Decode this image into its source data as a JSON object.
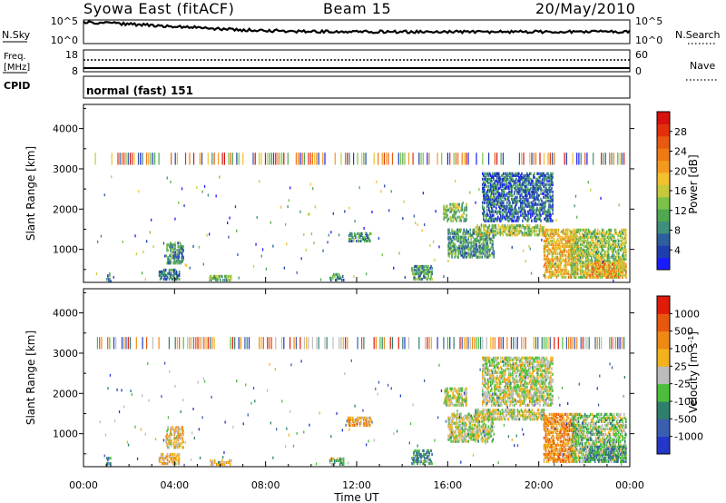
{
  "header": {
    "station": "Syowa East (fitACF)",
    "beam": "Beam 15",
    "date": "20/May/2010"
  },
  "top_panels": {
    "nsky_label": "N.Sky",
    "nsky_ticks": [
      "10^5",
      "10^0"
    ],
    "nsearch_label": "N.Search",
    "freq_label_1": "Freq.",
    "freq_label_2": "[MHz]",
    "freq_ticks": [
      "18",
      "8"
    ],
    "nave_label": "Nave",
    "nave_ticks": [
      "60",
      "0"
    ],
    "cpid_label": "CPID",
    "cpid_text": "normal (fast) 151"
  },
  "chart_data": [
    {
      "type": "heatmap",
      "title": "",
      "xlabel": "",
      "ylabel": "Slant Range [km]",
      "x_range_hours": [
        0,
        24
      ],
      "ylim": [
        180,
        4600
      ],
      "yticks": [
        1000,
        2000,
        3000,
        4000
      ],
      "colorbar": {
        "label": "Power [dB]",
        "ticks": [
          4,
          8,
          12,
          16,
          20,
          24,
          28
        ],
        "colors": [
          "#1a1aff",
          "#1f3fb0",
          "#2e5e9e",
          "#3f8f7a",
          "#4fa84f",
          "#7cc24a",
          "#c8c83c",
          "#f2c12e",
          "#f39a1e",
          "#ee7a14",
          "#e85a10",
          "#e3300c",
          "#d81010"
        ]
      },
      "echo_regions": [
        {
          "t": [
            1.0,
            1.2
          ],
          "r": [
            200,
            400
          ],
          "level": 0.25
        },
        {
          "t": [
            3.3,
            4.2
          ],
          "r": [
            250,
            500
          ],
          "level": 0.25
        },
        {
          "t": [
            3.6,
            4.4
          ],
          "r": [
            650,
            1150
          ],
          "level": 0.3
        },
        {
          "t": [
            5.5,
            6.5
          ],
          "r": [
            230,
            350
          ],
          "level": 0.4
        },
        {
          "t": [
            10.8,
            11.4
          ],
          "r": [
            230,
            380
          ],
          "level": 0.3
        },
        {
          "t": [
            11.6,
            12.6
          ],
          "r": [
            1200,
            1400
          ],
          "level": 0.3
        },
        {
          "t": [
            14.4,
            15.3
          ],
          "r": [
            250,
            600
          ],
          "level": 0.3
        },
        {
          "t": [
            15.8,
            16.8
          ],
          "r": [
            1700,
            2150
          ],
          "level": 0.4
        },
        {
          "t": [
            16.0,
            18.0
          ],
          "r": [
            800,
            1500
          ],
          "level": 0.3
        },
        {
          "t": [
            17.5,
            20.6
          ],
          "r": [
            1700,
            2900
          ],
          "level": 0.2
        },
        {
          "t": [
            17.2,
            20.2
          ],
          "r": [
            1350,
            1600
          ],
          "level": 0.45
        },
        {
          "t": [
            20.2,
            21.6
          ],
          "r": [
            300,
            1500
          ],
          "level": 0.6
        },
        {
          "t": [
            21.4,
            23.8
          ],
          "r": [
            300,
            1500
          ],
          "level": 0.45
        },
        {
          "t": [
            22.0,
            23.8
          ],
          "r": [
            300,
            700
          ],
          "level": 0.65
        }
      ]
    },
    {
      "type": "heatmap",
      "title": "",
      "xlabel": "Time UT",
      "ylabel": "Slant Range [km]",
      "x_range_hours": [
        0,
        24
      ],
      "xticks": [
        "00:00",
        "04:00",
        "08:00",
        "12:00",
        "16:00",
        "20:00",
        "00:00"
      ],
      "ylim": [
        180,
        4600
      ],
      "yticks": [
        1000,
        2000,
        3000,
        4000
      ],
      "colorbar": {
        "label": "Velocity [m s^-1]",
        "ticks": [
          "1000",
          "500",
          "100",
          "25",
          "-25",
          "-100",
          "-500",
          "-1000"
        ],
        "colors": [
          "#2437c9",
          "#3a5fb0",
          "#2f7f6b",
          "#4bbf3a",
          "#bcbcbc",
          "#f2b21e",
          "#ee8a14",
          "#e8570e",
          "#e21a0a"
        ]
      },
      "echo_regions": [
        {
          "t": [
            1.0,
            1.2
          ],
          "r": [
            200,
            400
          ],
          "level": 0.3
        },
        {
          "t": [
            3.3,
            4.2
          ],
          "r": [
            250,
            500
          ],
          "level": 0.6
        },
        {
          "t": [
            3.6,
            4.4
          ],
          "r": [
            650,
            1150
          ],
          "level": 0.6
        },
        {
          "t": [
            5.5,
            6.5
          ],
          "r": [
            230,
            350
          ],
          "level": 0.6
        },
        {
          "t": [
            10.8,
            11.4
          ],
          "r": [
            230,
            380
          ],
          "level": 0.4
        },
        {
          "t": [
            11.6,
            12.6
          ],
          "r": [
            1200,
            1400
          ],
          "level": 0.65
        },
        {
          "t": [
            14.4,
            15.3
          ],
          "r": [
            250,
            600
          ],
          "level": 0.3
        },
        {
          "t": [
            15.8,
            16.8
          ],
          "r": [
            1700,
            2150
          ],
          "level": 0.5
        },
        {
          "t": [
            16.0,
            18.0
          ],
          "r": [
            800,
            1500
          ],
          "level": 0.5
        },
        {
          "t": [
            17.5,
            20.6
          ],
          "r": [
            1700,
            2900
          ],
          "level": 0.5
        },
        {
          "t": [
            17.2,
            20.2
          ],
          "r": [
            1350,
            1600
          ],
          "level": 0.5
        },
        {
          "t": [
            20.2,
            21.6
          ],
          "r": [
            300,
            1500
          ],
          "level": 0.7
        },
        {
          "t": [
            21.4,
            23.8
          ],
          "r": [
            300,
            1500
          ],
          "level": 0.45
        },
        {
          "t": [
            22.0,
            23.8
          ],
          "r": [
            300,
            700
          ],
          "level": 0.3
        }
      ]
    }
  ]
}
